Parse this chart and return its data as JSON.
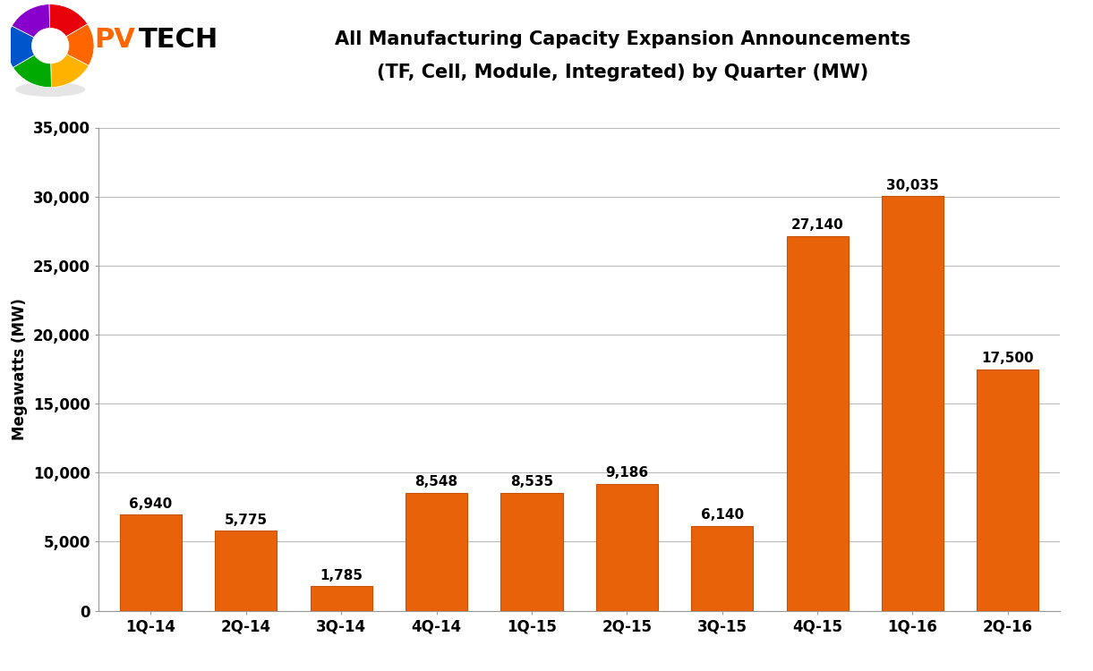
{
  "categories": [
    "1Q-14",
    "2Q-14",
    "3Q-14",
    "4Q-14",
    "1Q-15",
    "2Q-15",
    "3Q-15",
    "4Q-15",
    "1Q-16",
    "2Q-16"
  ],
  "values": [
    6940,
    5775,
    1785,
    8548,
    8535,
    9186,
    6140,
    27140,
    30035,
    17500
  ],
  "bar_color": "#E8620A",
  "bar_edge_color": "#C85000",
  "title_line1": "All Manufacturing Capacity Expansion Announcements",
  "title_line2": "(TF, Cell, Module, Integrated) by Quarter (MW)",
  "ylabel": "Megawatts (MW)",
  "ylim": [
    0,
    35000
  ],
  "yticks": [
    0,
    5000,
    10000,
    15000,
    20000,
    25000,
    30000,
    35000
  ],
  "title_fontsize": 15,
  "axis_fontsize": 12,
  "tick_fontsize": 12,
  "label_fontsize": 11,
  "background_color": "#FFFFFF",
  "grid_color": "#BBBBBB",
  "bar_width": 0.65,
  "logo_wedge_colors": [
    "#E8000A",
    "#FF6600",
    "#FFB300",
    "#00AA00",
    "#0055CC",
    "#8800CC"
  ],
  "pv_color": "#FF6600",
  "tech_color": "#000000"
}
